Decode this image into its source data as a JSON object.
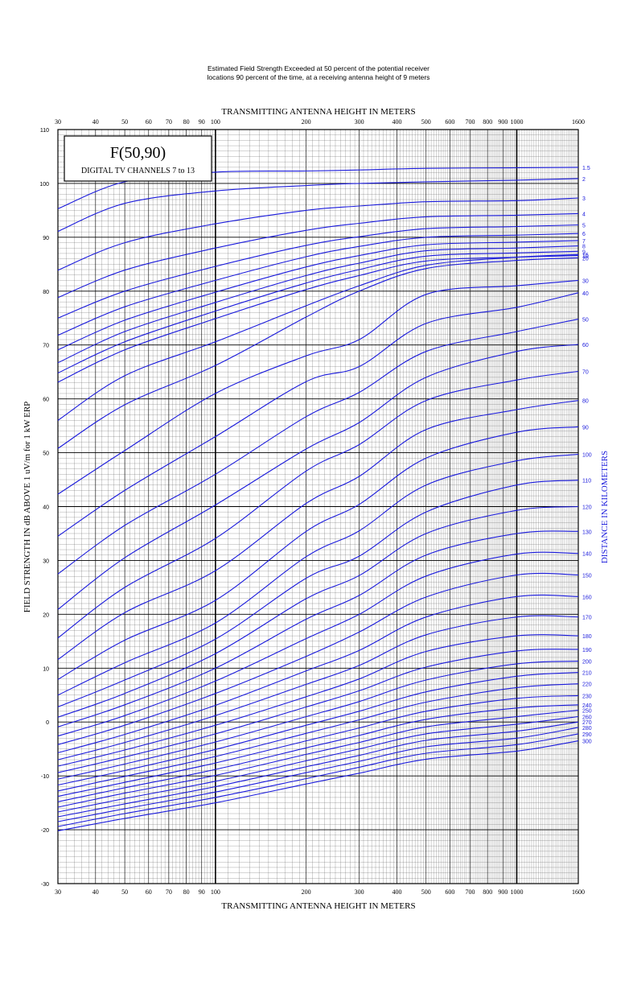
{
  "page": {
    "caption_line1": "Estimated Field Strength Exceeded at 50 percent of the potential receiver",
    "caption_line2": "locations 90 percent of the time, at a receiving antenna height of 9 meters"
  },
  "chart_data": {
    "type": "line",
    "title": "F(50,90)",
    "subtitle": "DIGITAL TV CHANNELS 7 to 13",
    "xlabel": "TRANSMITTING ANTENNA HEIGHT IN METERS",
    "ylabel": "FIELD STRENGTH IN dB ABOVE 1 uV/m for 1 kW ERP",
    "right_label": "DISTANCE IN KILOMETERS",
    "x_scale": "log",
    "xlim": [
      30,
      1600
    ],
    "ylim": [
      -30,
      110
    ],
    "x_ticks": [
      30,
      40,
      50,
      60,
      70,
      80,
      90,
      100,
      200,
      300,
      400,
      500,
      600,
      700,
      800,
      900,
      1000,
      1600
    ],
    "y_ticks": [
      110,
      100,
      90,
      80,
      70,
      60,
      50,
      40,
      30,
      20,
      10,
      0,
      -10,
      -20,
      -30
    ],
    "grid": true,
    "colors": {
      "series": "#1a1adc",
      "grid": "#000000"
    },
    "x": [
      30,
      50,
      100,
      200,
      300,
      500,
      1000,
      1600
    ],
    "series": [
      {
        "name": "1.5",
        "values": [
          95.3,
          100.3,
          102.1,
          102.3,
          102.5,
          102.8,
          102.9,
          103.0
        ]
      },
      {
        "name": "2",
        "values": [
          91.1,
          96.3,
          98.6,
          99.6,
          100.0,
          100.3,
          100.6,
          100.9
        ]
      },
      {
        "name": "3",
        "values": [
          83.9,
          89.0,
          92.5,
          95.0,
          95.8,
          96.6,
          96.8,
          97.3
        ]
      },
      {
        "name": "4",
        "values": [
          78.8,
          83.9,
          88.0,
          91.3,
          92.6,
          93.8,
          94.1,
          94.4
        ]
      },
      {
        "name": "5",
        "values": [
          75.0,
          80.0,
          84.6,
          88.5,
          90.1,
          91.6,
          92.0,
          92.3
        ]
      },
      {
        "name": "6",
        "values": [
          71.8,
          77.1,
          82.0,
          86.4,
          88.3,
          90.0,
          90.4,
          90.7
        ]
      },
      {
        "name": "7",
        "values": [
          69.1,
          74.6,
          79.8,
          84.5,
          86.6,
          88.6,
          89.1,
          89.4
        ]
      },
      {
        "name": "8",
        "values": [
          66.7,
          72.5,
          77.9,
          82.9,
          85.2,
          87.5,
          88.0,
          88.4
        ]
      },
      {
        "name": "9",
        "values": [
          64.8,
          70.6,
          76.3,
          81.5,
          84.0,
          86.5,
          87.1,
          87.4
        ]
      },
      {
        "name": "10",
        "values": [
          63.1,
          69.1,
          74.9,
          80.3,
          82.9,
          85.6,
          86.3,
          86.6
        ]
      },
      {
        "name": "15",
        "values": null
      },
      {
        "name": "20",
        "values": null
      },
      {
        "name": "30",
        "values": null
      },
      {
        "name": "40",
        "values": null
      },
      {
        "name": "50",
        "values": null
      },
      {
        "name": "60",
        "values": null
      },
      {
        "name": "70",
        "values": null
      },
      {
        "name": "80",
        "values": null
      },
      {
        "name": "90",
        "values": null
      },
      {
        "name": "100",
        "values": null
      },
      {
        "name": "110",
        "values": null
      },
      {
        "name": "120",
        "values": null
      },
      {
        "name": "130",
        "values": null
      },
      {
        "name": "140",
        "values": null
      },
      {
        "name": "150",
        "values": null
      },
      {
        "name": "160",
        "values": null
      },
      {
        "name": "170",
        "values": null
      },
      {
        "name": "180",
        "values": null
      },
      {
        "name": "190",
        "values": null
      },
      {
        "name": "200",
        "values": null
      },
      {
        "name": "210",
        "values": null
      },
      {
        "name": "220",
        "values": null
      },
      {
        "name": "230",
        "values": null
      },
      {
        "name": "240",
        "values": null
      },
      {
        "name": "250",
        "values": null
      },
      {
        "name": "260",
        "values": null
      },
      {
        "name": "270",
        "values": null
      },
      {
        "name": "280",
        "values": null
      },
      {
        "name": "290",
        "values": null
      },
      {
        "name": "300",
        "values": null
      }
    ],
    "series_points": {
      "15": [
        56.0,
        64.3,
        70.6,
        77.3,
        81.0,
        84.8,
        86.3,
        86.8
      ],
      "20": [
        50.8,
        58.9,
        66.2,
        75.2,
        80.0,
        84.2,
        85.7,
        86.2
      ],
      "30": [
        42.3,
        50.4,
        61.0,
        68.0,
        71.0,
        79.4,
        81.0,
        82.0
      ],
      "40": [
        34.5,
        43.0,
        53.0,
        63.2,
        66.0,
        74.0,
        77.0,
        79.7
      ],
      "50": [
        27.5,
        36.5,
        46.0,
        56.7,
        61.2,
        68.8,
        72.5,
        74.8
      ],
      "60": [
        20.9,
        30.5,
        40.3,
        50.7,
        55.6,
        64.0,
        68.8,
        70.1
      ],
      "70": [
        15.6,
        25.0,
        34.1,
        46.6,
        51.5,
        59.7,
        63.5,
        65.1
      ],
      "80": [
        11.6,
        20.3,
        28.1,
        40.6,
        45.6,
        54.3,
        58.0,
        59.7
      ],
      "90": [
        7.9,
        15.2,
        22.6,
        35.4,
        40.4,
        49.0,
        53.8,
        54.8
      ],
      "100": [
        5.0,
        11.0,
        18.4,
        30.7,
        35.5,
        44.0,
        48.5,
        49.7
      ],
      "110": [
        2.8,
        7.8,
        15.4,
        26.7,
        30.8,
        39.0,
        44.0,
        44.9
      ],
      "120": [
        0.9,
        5.3,
        12.7,
        22.9,
        27.2,
        35.0,
        39.3,
        40.0
      ],
      "130": [
        -0.9,
        3.2,
        10.0,
        19.1,
        23.5,
        31.0,
        35.0,
        35.4
      ],
      "140": [
        -2.6,
        1.2,
        7.6,
        15.5,
        20.0,
        27.1,
        31.2,
        31.3
      ],
      "150": [
        -4.2,
        -0.6,
        5.3,
        12.2,
        16.7,
        23.2,
        27.3,
        27.3
      ],
      "160": [
        -5.7,
        -2.3,
        3.1,
        9.5,
        13.3,
        19.5,
        23.3,
        23.3
      ],
      "170": [
        -7.0,
        -3.8,
        1.2,
        7.0,
        10.5,
        16.2,
        19.5,
        19.5
      ],
      "180": [
        -8.2,
        -5.2,
        -0.6,
        4.7,
        8.0,
        13.1,
        16.0,
        16.0
      ],
      "190": [
        -9.4,
        -6.5,
        -2.2,
        2.8,
        5.8,
        10.2,
        13.2,
        13.5
      ],
      "200": [
        -10.6,
        -7.8,
        -3.7,
        1.0,
        3.8,
        7.8,
        10.8,
        11.3
      ],
      "210": [
        -11.7,
        -9.0,
        -5.1,
        -0.6,
        2.0,
        5.6,
        8.5,
        9.2
      ],
      "220": [
        -12.8,
        -10.1,
        -6.4,
        -2.1,
        0.4,
        3.7,
        6.4,
        7.1
      ],
      "230": [
        -13.8,
        -11.2,
        -7.6,
        -3.5,
        -1.1,
        2.0,
        4.4,
        4.9
      ],
      "240": [
        -14.8,
        -12.2,
        -8.8,
        -4.8,
        -2.5,
        0.5,
        2.6,
        3.2
      ],
      "250": [
        -15.8,
        -13.2,
        -9.9,
        -6.0,
        -3.8,
        -0.9,
        1.0,
        2.2
      ],
      "260": [
        -16.7,
        -14.2,
        -11.0,
        -7.2,
        -5.0,
        -2.2,
        -0.4,
        1.0
      ],
      "270": [
        -17.6,
        -15.2,
        -12.0,
        -8.3,
        -6.2,
        -3.4,
        -1.7,
        0.0
      ],
      "280": [
        -18.5,
        -16.1,
        -13.0,
        -9.4,
        -7.3,
        -4.6,
        -3.0,
        -1.0
      ],
      "290": [
        -19.4,
        -17.0,
        -14.0,
        -10.5,
        -8.4,
        -5.8,
        -4.2,
        -2.2
      ],
      "300": [
        -20.2,
        -17.9,
        -15.0,
        -11.5,
        -9.5,
        -6.9,
        -5.4,
        -3.5
      ]
    }
  }
}
